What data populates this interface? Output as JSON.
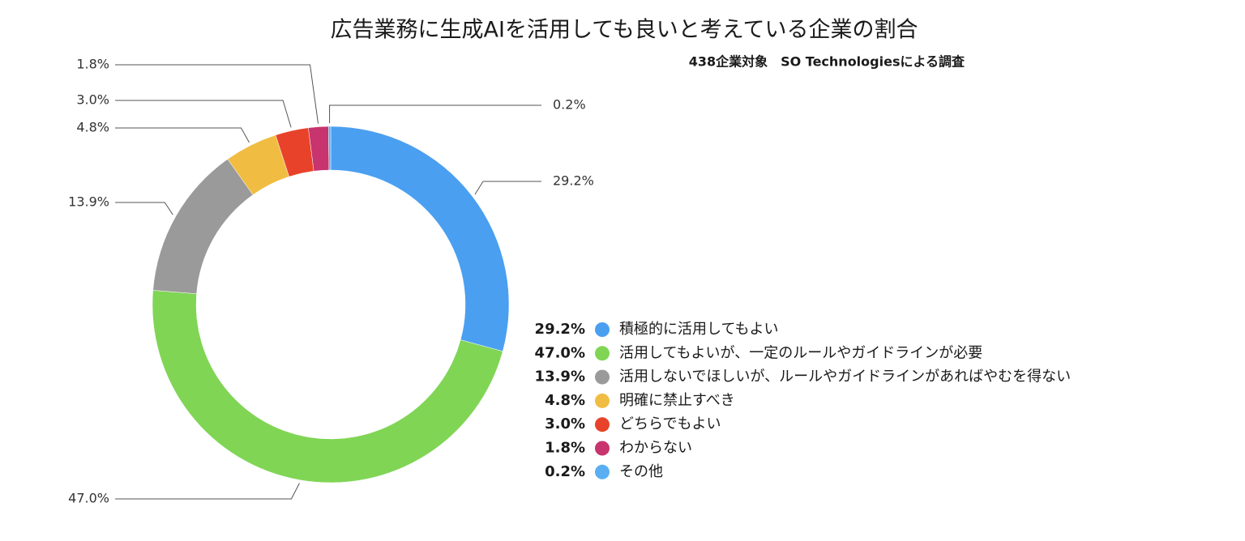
{
  "chart_data": {
    "type": "donut",
    "title": "広告業務に生成AIを活用しても良いと考えている企業の割合",
    "subtitle": "438企業対象　SO Technologiesによる調査",
    "categories": [
      "積極的に活用してもよい",
      "活用してもよいが、一定のルールやガイドラインが必要",
      "活用しないでほしいが、ルールやガイドラインがあればやむを得ない",
      "明確に禁止すべき",
      "どちらでもよい",
      "わからない",
      "その他"
    ],
    "values": [
      29.2,
      47.0,
      13.9,
      4.8,
      3.0,
      1.8,
      0.2
    ],
    "value_labels": [
      "29.2%",
      "47.0%",
      "13.9%",
      "4.8%",
      "3.0%",
      "1.8%",
      "0.2%"
    ],
    "colors": [
      "#4a9ff0",
      "#80d555",
      "#9a9a9a",
      "#f0bd42",
      "#e8432a",
      "#c7346e",
      "#5aaef2"
    ]
  }
}
